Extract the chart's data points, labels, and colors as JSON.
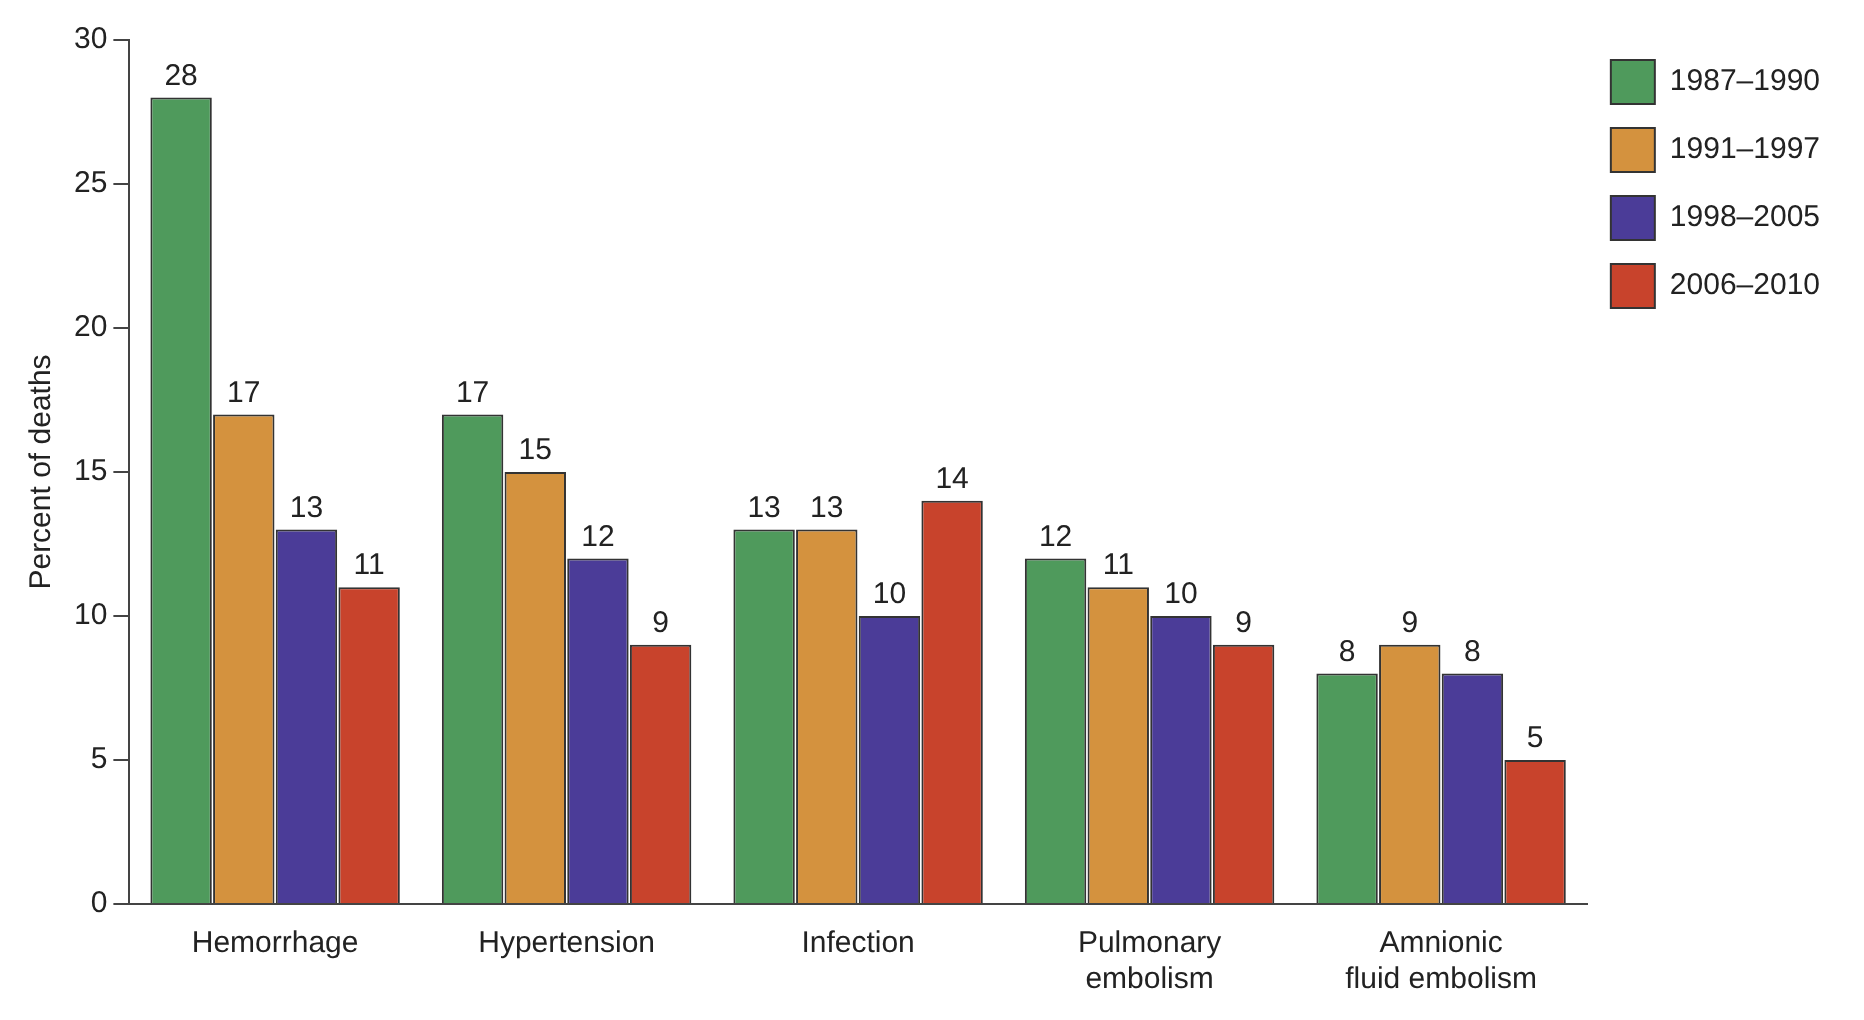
{
  "chart_data": {
    "type": "bar",
    "ylabel": "Percent of deaths",
    "categories": [
      "Hemorrhage",
      "Hypertension",
      "Infection",
      "Pulmonary embolism",
      "Amnionic fluid embolism"
    ],
    "series": [
      {
        "name": "1987–1990",
        "color": "#4f9a5c",
        "values": [
          28,
          17,
          13,
          12,
          8
        ]
      },
      {
        "name": "1991–1997",
        "color": "#d4923e",
        "values": [
          17,
          15,
          13,
          11,
          9
        ]
      },
      {
        "name": "1998–2005",
        "color": "#4b3c98",
        "values": [
          13,
          12,
          10,
          10,
          8
        ]
      },
      {
        "name": "2006–2010",
        "color": "#c8432c",
        "values": [
          11,
          9,
          14,
          9,
          5
        ]
      }
    ],
    "ylim": [
      0,
      30
    ],
    "yticks": [
      0,
      5,
      10,
      15,
      20,
      25,
      30
    ],
    "grid": false,
    "legend": "top right",
    "data_labels": true
  }
}
